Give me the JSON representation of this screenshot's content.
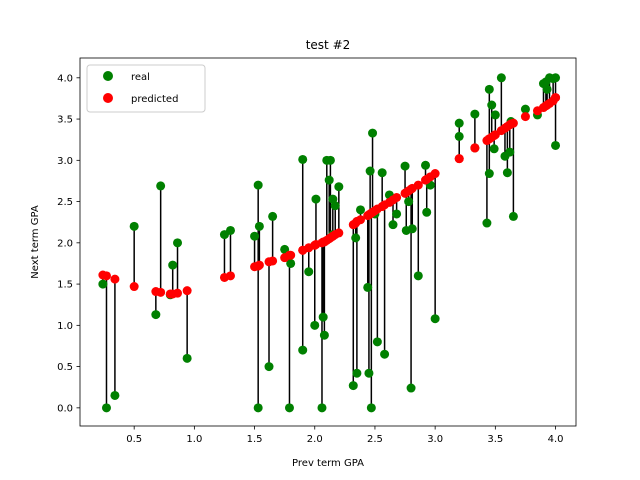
{
  "chart_data": {
    "type": "scatter",
    "title": "test #2",
    "xlabel": "Prev term GPA",
    "ylabel": "Next term GPA",
    "xlim": [
      0.05,
      4.17
    ],
    "ylim": [
      -0.22,
      4.24
    ],
    "xticks": [
      "0.5",
      "1.0",
      "1.5",
      "2.0",
      "2.5",
      "3.0",
      "3.5",
      "4.0"
    ],
    "xtick_values": [
      0.5,
      1.0,
      1.5,
      2.0,
      2.5,
      3.0,
      3.5,
      4.0
    ],
    "yticks": [
      "0.0",
      "0.5",
      "1.0",
      "1.5",
      "2.0",
      "2.5",
      "3.0",
      "3.5",
      "4.0"
    ],
    "ytick_values": [
      0.0,
      0.5,
      1.0,
      1.5,
      2.0,
      2.5,
      3.0,
      3.5,
      4.0
    ],
    "grid": false,
    "legend_position": "top-left",
    "colors": {
      "real": "#008000",
      "predicted": "#ff0000",
      "residual": "#000000"
    },
    "series": [
      {
        "name": "real",
        "x": [
          0.24,
          0.27,
          0.34,
          0.5,
          0.68,
          0.72,
          0.8,
          0.82,
          0.86,
          0.94,
          1.25,
          1.3,
          1.5,
          1.53,
          1.53,
          1.54,
          1.62,
          1.65,
          1.75,
          1.79,
          1.8,
          1.9,
          1.9,
          1.95,
          2.0,
          2.01,
          2.06,
          2.07,
          2.08,
          2.1,
          2.12,
          2.13,
          2.15,
          2.15,
          2.17,
          2.2,
          2.32,
          2.34,
          2.35,
          2.38,
          2.44,
          2.45,
          2.46,
          2.47,
          2.48,
          2.5,
          2.52,
          2.56,
          2.58,
          2.62,
          2.65,
          2.68,
          2.75,
          2.76,
          2.78,
          2.8,
          2.81,
          2.86,
          2.92,
          2.93,
          2.96,
          3.0,
          3.2,
          3.2,
          3.33,
          3.33,
          3.43,
          3.45,
          3.45,
          3.47,
          3.49,
          3.5,
          3.55,
          3.58,
          3.6,
          3.62,
          3.63,
          3.65,
          3.75,
          3.85,
          3.9,
          3.92,
          3.93,
          3.95,
          3.98,
          4.0,
          4.0
        ],
        "y": [
          1.5,
          0.0,
          0.15,
          2.2,
          1.13,
          2.69,
          1.37,
          1.73,
          2.0,
          0.6,
          2.1,
          2.15,
          2.08,
          2.7,
          0.0,
          2.2,
          0.5,
          2.32,
          1.92,
          0.0,
          1.75,
          3.01,
          0.7,
          1.65,
          1.0,
          2.53,
          0.0,
          1.1,
          0.88,
          3.0,
          2.76,
          3.0,
          2.53,
          2.1,
          2.45,
          2.68,
          0.27,
          2.06,
          0.42,
          2.4,
          1.46,
          0.42,
          2.87,
          0.0,
          3.33,
          2.35,
          0.8,
          2.85,
          0.65,
          2.58,
          2.22,
          2.35,
          2.93,
          2.15,
          2.5,
          0.24,
          2.17,
          1.6,
          2.94,
          2.37,
          2.7,
          1.08,
          3.45,
          3.29,
          3.56,
          3.15,
          2.24,
          2.84,
          3.86,
          3.67,
          3.14,
          3.55,
          4.0,
          3.05,
          2.85,
          3.1,
          3.47,
          2.32,
          3.62,
          3.55,
          3.93,
          3.95,
          3.86,
          4.0,
          3.99,
          3.18,
          4.0
        ]
      },
      {
        "name": "predicted",
        "x": [
          0.24,
          0.27,
          0.34,
          0.5,
          0.68,
          0.72,
          0.8,
          0.82,
          0.86,
          0.94,
          1.25,
          1.3,
          1.5,
          1.53,
          1.53,
          1.54,
          1.62,
          1.65,
          1.75,
          1.79,
          1.8,
          1.9,
          1.9,
          1.95,
          2.0,
          2.01,
          2.06,
          2.07,
          2.08,
          2.1,
          2.12,
          2.13,
          2.15,
          2.15,
          2.17,
          2.2,
          2.32,
          2.34,
          2.35,
          2.38,
          2.44,
          2.45,
          2.46,
          2.47,
          2.48,
          2.5,
          2.52,
          2.56,
          2.58,
          2.62,
          2.65,
          2.68,
          2.75,
          2.76,
          2.78,
          2.8,
          2.81,
          2.86,
          2.92,
          2.93,
          2.96,
          3.0,
          3.2,
          3.2,
          3.33,
          3.33,
          3.43,
          3.45,
          3.45,
          3.47,
          3.49,
          3.5,
          3.55,
          3.58,
          3.6,
          3.62,
          3.63,
          3.65,
          3.75,
          3.85,
          3.9,
          3.92,
          3.93,
          3.95,
          3.98,
          4.0,
          4.0
        ],
        "y": [
          1.61,
          1.6,
          1.56,
          1.47,
          1.41,
          1.4,
          1.38,
          1.38,
          1.39,
          1.42,
          1.58,
          1.6,
          1.71,
          1.72,
          1.72,
          1.73,
          1.77,
          1.78,
          1.82,
          1.85,
          1.85,
          1.91,
          1.91,
          1.94,
          1.97,
          1.98,
          2.0,
          2.01,
          2.01,
          2.03,
          2.05,
          2.06,
          2.08,
          2.08,
          2.1,
          2.12,
          2.22,
          2.24,
          2.26,
          2.28,
          2.33,
          2.34,
          2.35,
          2.36,
          2.37,
          2.39,
          2.41,
          2.44,
          2.46,
          2.49,
          2.52,
          2.55,
          2.6,
          2.61,
          2.63,
          2.65,
          2.66,
          2.7,
          2.76,
          2.77,
          2.8,
          2.84,
          3.02,
          3.02,
          3.15,
          3.15,
          3.24,
          3.26,
          3.26,
          3.28,
          3.3,
          3.31,
          3.36,
          3.39,
          3.41,
          3.43,
          3.44,
          3.45,
          3.53,
          3.6,
          3.64,
          3.66,
          3.67,
          3.69,
          3.72,
          3.76,
          3.76
        ]
      }
    ]
  }
}
